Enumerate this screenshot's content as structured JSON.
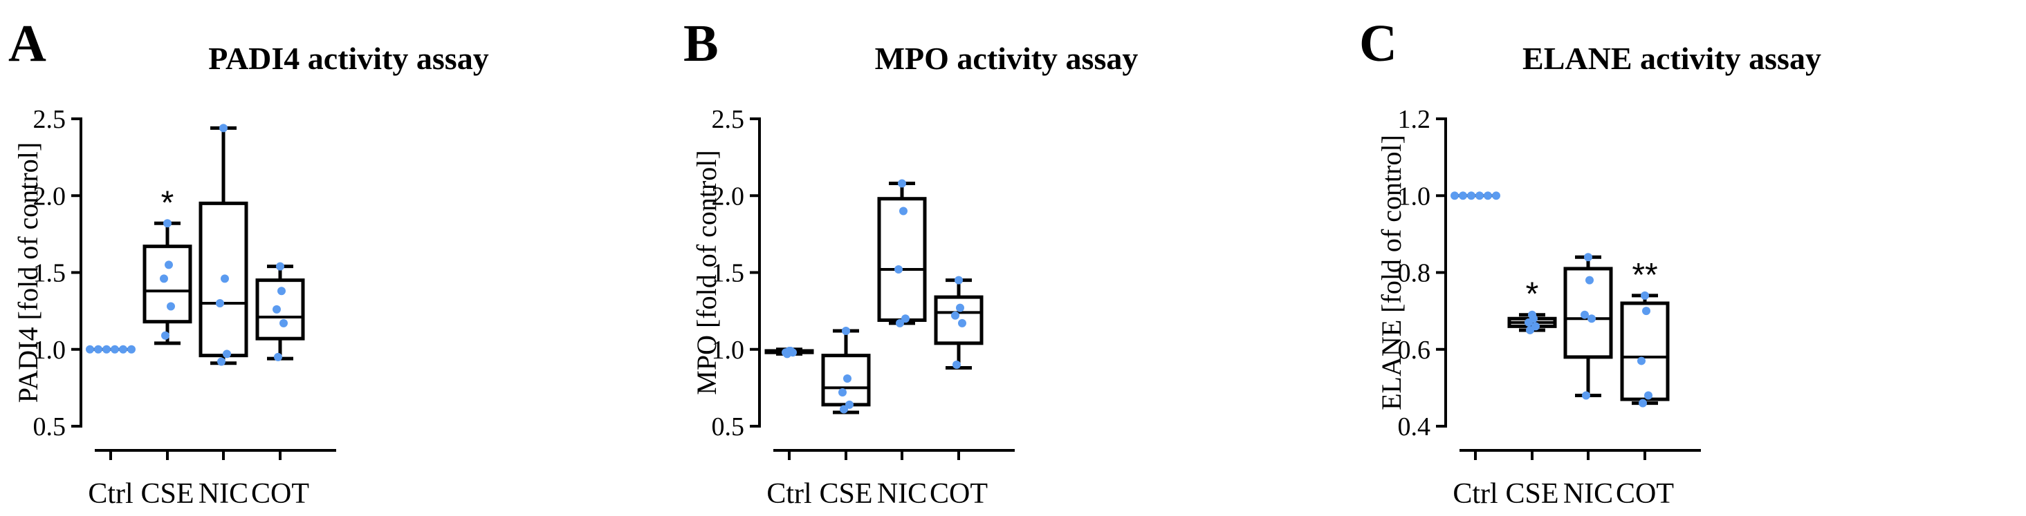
{
  "chart_data": [
    {
      "type": "box",
      "panel_label": "A",
      "title": "PADI4 activity assay",
      "xlabel": "",
      "ylabel": "PADI4 [fold of control]",
      "ylim": [
        0.5,
        2.5
      ],
      "yticks": [
        "0.5",
        "1.0",
        "1.5",
        "2.0",
        "2.5"
      ],
      "ytick_values": [
        0.5,
        1.0,
        1.5,
        2.0,
        2.5
      ],
      "categories": [
        "Ctrl",
        "CSE",
        "NIC",
        "COT"
      ],
      "boxes": [
        {
          "min": 1.0,
          "q1": 1.0,
          "median": 1.0,
          "q3": 1.0,
          "max": 1.0,
          "points": [
            1.0,
            1.0,
            1.0,
            1.0,
            1.0,
            1.0
          ],
          "sig": ""
        },
        {
          "min": 1.04,
          "q1": 1.18,
          "median": 1.38,
          "q3": 1.67,
          "max": 1.82,
          "points": [
            1.82,
            1.55,
            1.46,
            1.28,
            1.09
          ],
          "sig": "*"
        },
        {
          "min": 0.91,
          "q1": 0.96,
          "median": 1.3,
          "q3": 1.95,
          "max": 2.44,
          "points": [
            2.44,
            1.46,
            1.3,
            0.97,
            0.92
          ],
          "sig": ""
        },
        {
          "min": 0.94,
          "q1": 1.07,
          "median": 1.21,
          "q3": 1.45,
          "max": 1.54,
          "points": [
            1.54,
            1.38,
            1.26,
            1.17,
            0.95
          ],
          "sig": ""
        }
      ]
    },
    {
      "type": "box",
      "panel_label": "B",
      "title": "MPO activity assay",
      "xlabel": "",
      "ylabel": "MPO [fold of control]",
      "ylim": [
        0.5,
        2.5
      ],
      "yticks": [
        "0.5",
        "1.0",
        "1.5",
        "2.0",
        "2.5"
      ],
      "ytick_values": [
        0.5,
        1.0,
        1.5,
        2.0,
        2.5
      ],
      "categories": [
        "Ctrl",
        "CSE",
        "NIC",
        "COT"
      ],
      "boxes": [
        {
          "min": 0.97,
          "q1": 0.98,
          "median": 0.98,
          "q3": 0.99,
          "max": 1.0,
          "points": [
            0.99,
            0.99,
            0.98,
            0.98,
            0.97
          ],
          "sig": ""
        },
        {
          "min": 0.59,
          "q1": 0.64,
          "median": 0.75,
          "q3": 0.96,
          "max": 1.12,
          "points": [
            1.12,
            0.81,
            0.72,
            0.64,
            0.61
          ],
          "sig": ""
        },
        {
          "min": 1.17,
          "q1": 1.19,
          "median": 1.52,
          "q3": 1.98,
          "max": 2.08,
          "points": [
            2.08,
            1.9,
            1.52,
            1.2,
            1.17
          ],
          "sig": ""
        },
        {
          "min": 0.88,
          "q1": 1.04,
          "median": 1.24,
          "q3": 1.34,
          "max": 1.45,
          "points": [
            1.45,
            1.27,
            1.22,
            1.17,
            0.9
          ],
          "sig": ""
        }
      ]
    },
    {
      "type": "box",
      "panel_label": "C",
      "title": "ELANE activity assay",
      "xlabel": "",
      "ylabel": "ELANE [fold of control]",
      "ylim": [
        0.4,
        1.2
      ],
      "yticks": [
        "0.4",
        "0.6",
        "0.8",
        "1.0",
        "1.2"
      ],
      "ytick_values": [
        0.4,
        0.6,
        0.8,
        1.0,
        1.2
      ],
      "categories": [
        "Ctrl",
        "CSE",
        "NIC",
        "COT"
      ],
      "boxes": [
        {
          "min": 1.0,
          "q1": 1.0,
          "median": 1.0,
          "q3": 1.0,
          "max": 1.0,
          "points": [
            1.0,
            1.0,
            1.0,
            1.0,
            1.0,
            1.0
          ],
          "sig": ""
        },
        {
          "min": 0.65,
          "q1": 0.66,
          "median": 0.67,
          "q3": 0.68,
          "max": 0.69,
          "points": [
            0.69,
            0.68,
            0.67,
            0.66,
            0.65
          ],
          "sig": "*"
        },
        {
          "min": 0.48,
          "q1": 0.58,
          "median": 0.68,
          "q3": 0.81,
          "max": 0.84,
          "points": [
            0.84,
            0.78,
            0.69,
            0.68,
            0.48
          ],
          "sig": ""
        },
        {
          "min": 0.46,
          "q1": 0.47,
          "median": 0.58,
          "q3": 0.72,
          "max": 0.74,
          "points": [
            0.74,
            0.7,
            0.57,
            0.48,
            0.46
          ],
          "sig": "**"
        }
      ]
    }
  ],
  "colors": {
    "point": "#5b9bf0",
    "line": "#000000"
  }
}
